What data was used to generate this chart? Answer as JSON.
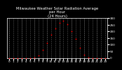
{
  "title": "Milwaukee Weather Solar Radiation Average\nper Hour\n(24 Hours)",
  "hours": [
    0,
    1,
    2,
    3,
    4,
    5,
    6,
    7,
    8,
    9,
    10,
    11,
    12,
    13,
    14,
    15,
    16,
    17,
    18,
    19,
    20,
    21,
    22,
    23
  ],
  "values": [
    0,
    0,
    0,
    0,
    0,
    0,
    2,
    18,
    60,
    115,
    175,
    225,
    265,
    280,
    255,
    205,
    145,
    78,
    22,
    2,
    0,
    0,
    0,
    0
  ],
  "dot_color": "#ff0000",
  "bg_color": "#000000",
  "plot_bg_color": "#000000",
  "grid_color": "#555555",
  "title_color": "#ffffff",
  "axis_color": "#ffffff",
  "tick_color": "#ffffff",
  "ylim": [
    0,
    300
  ],
  "xlim": [
    -0.5,
    23.5
  ],
  "title_fontsize": 3.8,
  "tick_fontsize": 3.0,
  "ytick_values": [
    0,
    50,
    100,
    150,
    200,
    250,
    300
  ],
  "xtick_values": [
    0,
    1,
    2,
    3,
    4,
    5,
    6,
    7,
    8,
    9,
    10,
    11,
    12,
    13,
    14,
    15,
    16,
    17,
    18,
    19,
    20,
    21,
    22,
    23
  ],
  "grid_xticks": [
    0,
    3,
    6,
    9,
    12,
    15,
    18,
    21
  ]
}
